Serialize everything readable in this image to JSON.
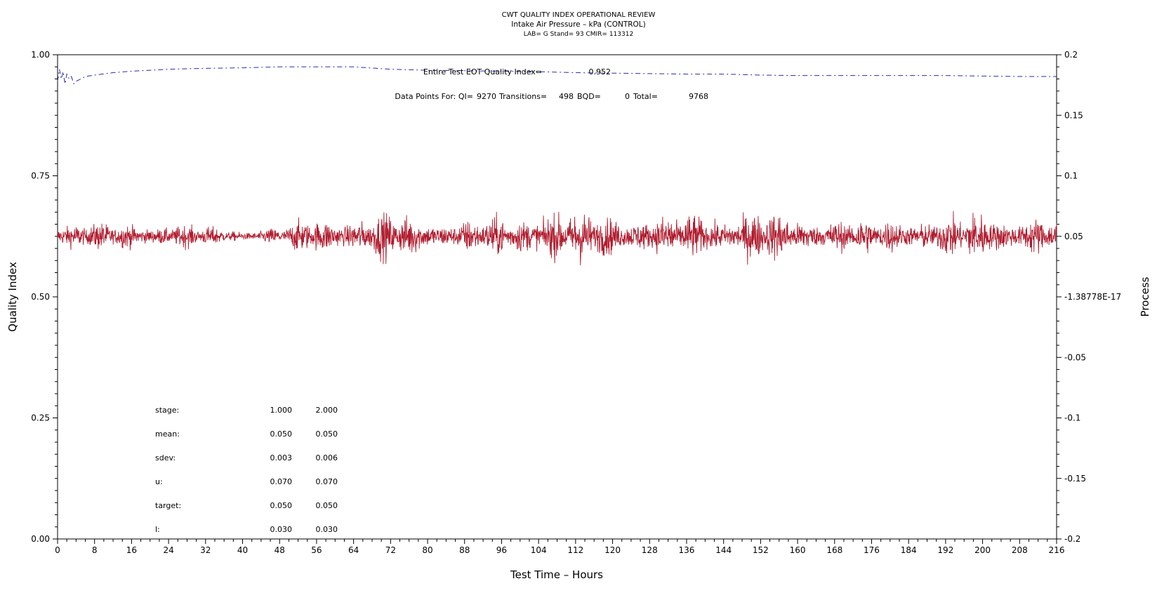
{
  "chart_data": {
    "type": "line",
    "title": "CWT QUALITY INDEX OPERATIONAL REVIEW",
    "subtitle": "Intake Air Pressure – kPa (CONTROL)",
    "subtitle2": "LAB= G Stand= 93 CMIR= 113312",
    "xlabel": "Test Time – Hours",
    "ylabel_left": "Quality Index",
    "ylabel_right": "Process",
    "xlim": [
      0,
      216
    ],
    "ylim_left": [
      0,
      1
    ],
    "ylim_right": [
      -0.2,
      0.2
    ],
    "x_ticks": [
      "0",
      "8",
      "16",
      "24",
      "32",
      "40",
      "48",
      "56",
      "64",
      "72",
      "80",
      "88",
      "96",
      "104",
      "112",
      "120",
      "128",
      "136",
      "144",
      "152",
      "160",
      "168",
      "176",
      "184",
      "192",
      "200",
      "208",
      "216"
    ],
    "y_left_ticks": [
      "0.00",
      "0.25",
      "0.50",
      "0.75",
      "1.00"
    ],
    "y_right_ticks": [
      "-0.2",
      "-0.15",
      "-0.1",
      "-0.05",
      "-1.38778E-17",
      "0.05",
      "0.1",
      "0.15",
      "0.2"
    ],
    "grid": false,
    "annotations": {
      "eot_label": "Entire Test EOT Quality Index=",
      "eot_value": "0.952",
      "points_label": "Data Points For: QI=",
      "points_qi": "9270",
      "transitions_label": "Transitions=",
      "transitions": "498",
      "bqd_label": "BQD=",
      "bqd": "0",
      "total_label": "Total=",
      "total": "9768"
    },
    "stats_table": {
      "rows": [
        {
          "label": "stage:",
          "v1": "1.000",
          "v2": "2.000"
        },
        {
          "label": "mean:",
          "v1": "0.050",
          "v2": "0.050"
        },
        {
          "label": "sdev:",
          "v1": "0.003",
          "v2": "0.006"
        },
        {
          "label": "u:",
          "v1": "0.070",
          "v2": "0.070"
        },
        {
          "label": "target:",
          "v1": "0.050",
          "v2": "0.050"
        },
        {
          "label": "l:",
          "v1": "0.030",
          "v2": "0.030"
        }
      ]
    },
    "series": [
      {
        "axis": "left",
        "style": "dashed",
        "color": "#2b2bb0",
        "x": [
          0.0,
          0.4,
          0.8,
          1.2,
          1.6,
          2.0,
          2.5,
          3.0,
          3.5,
          4.0,
          5.0,
          6.0,
          8,
          12,
          16,
          20,
          24,
          32,
          40,
          48,
          56,
          64,
          72,
          80,
          88,
          96,
          104,
          112,
          120,
          128,
          136,
          144,
          152,
          160,
          168,
          176,
          184,
          192,
          200,
          208,
          216
        ],
        "y": [
          0.945,
          0.97,
          0.95,
          0.965,
          0.94,
          0.96,
          0.95,
          0.955,
          0.94,
          0.945,
          0.95,
          0.955,
          0.958,
          0.963,
          0.966,
          0.968,
          0.97,
          0.972,
          0.973,
          0.975,
          0.975,
          0.975,
          0.97,
          0.968,
          0.967,
          0.966,
          0.965,
          0.963,
          0.962,
          0.961,
          0.96,
          0.96,
          0.958,
          0.957,
          0.957,
          0.957,
          0.957,
          0.957,
          0.956,
          0.955,
          0.955
        ]
      },
      {
        "axis": "right",
        "style": "solid",
        "color": "#b01c2e",
        "mean": 0.05,
        "x_range": [
          0,
          216
        ],
        "sdev_profile": {
          "x": [
            0,
            8,
            16,
            24,
            32,
            40,
            48,
            56,
            64,
            72,
            80,
            88,
            96,
            104,
            112,
            120,
            128,
            136,
            144,
            152,
            160,
            168,
            176,
            184,
            192,
            200,
            208,
            216
          ],
          "sdev": [
            0.005,
            0.004,
            0.004,
            0.004,
            0.003,
            0.002,
            0.003,
            0.006,
            0.006,
            0.007,
            0.006,
            0.005,
            0.006,
            0.008,
            0.008,
            0.007,
            0.006,
            0.007,
            0.007,
            0.008,
            0.006,
            0.006,
            0.005,
            0.006,
            0.006,
            0.008,
            0.006,
            0.006
          ]
        }
      }
    ]
  }
}
